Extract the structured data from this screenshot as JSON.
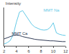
{
  "chart_data": {
    "type": "line",
    "ylabel": "Intensity",
    "x": [
      2,
      2.5,
      3,
      3.5,
      4,
      4.5,
      5,
      5.5,
      6,
      6.5,
      7,
      7.5,
      8,
      8.5,
      9,
      9.5,
      10,
      10.5,
      11,
      11.5,
      12
    ],
    "series": [
      {
        "name": "MMT Na",
        "color": "#5fc8e6",
        "values": [
          5,
          8,
          14,
          30,
          62,
          88,
          92,
          80,
          66,
          56,
          49,
          45,
          42,
          41,
          42,
          48,
          60,
          34,
          30,
          28,
          27
        ]
      },
      {
        "name": "MMT Ca",
        "color": "#2a3550",
        "values": [
          18,
          21,
          24,
          27,
          28,
          27,
          24,
          22,
          20,
          18,
          17,
          16,
          15,
          14,
          14,
          13,
          13,
          12,
          12,
          11,
          11
        ]
      }
    ],
    "xlim": [
      2,
      12
    ],
    "xticks": [
      2,
      4,
      6,
      8,
      10,
      12
    ],
    "ylim": [
      0,
      100
    ],
    "tick_labels": "x",
    "grid": false
  }
}
